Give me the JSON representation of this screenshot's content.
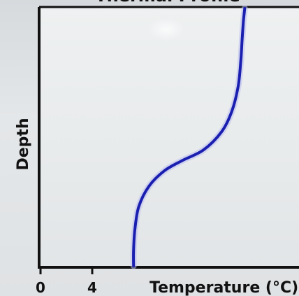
{
  "chart_data": {
    "type": "line",
    "title": "Thermal Profile",
    "xlabel": "Temperature (°C)",
    "ylabel": "Depth",
    "x_ticks": [
      {
        "value": 0,
        "label": "0"
      },
      {
        "value": 4,
        "label": "4"
      }
    ],
    "xlim": [
      0,
      20
    ],
    "ylim": [
      0,
      1
    ],
    "y_inverted": true,
    "grid": false,
    "legend": "none",
    "series": [
      {
        "color": "#1a1fb0",
        "points": [
          {
            "x": 15.8,
            "depth": 0.0
          },
          {
            "x": 15.7,
            "depth": 0.05
          },
          {
            "x": 15.6,
            "depth": 0.12
          },
          {
            "x": 15.5,
            "depth": 0.2
          },
          {
            "x": 15.3,
            "depth": 0.3
          },
          {
            "x": 14.8,
            "depth": 0.4
          },
          {
            "x": 14.0,
            "depth": 0.48
          },
          {
            "x": 12.6,
            "depth": 0.55
          },
          {
            "x": 11.0,
            "depth": 0.59
          },
          {
            "x": 9.6,
            "depth": 0.63
          },
          {
            "x": 8.4,
            "depth": 0.69
          },
          {
            "x": 7.6,
            "depth": 0.77
          },
          {
            "x": 7.3,
            "depth": 0.86
          },
          {
            "x": 7.2,
            "depth": 0.94
          },
          {
            "x": 7.2,
            "depth": 1.0
          }
        ]
      }
    ]
  }
}
